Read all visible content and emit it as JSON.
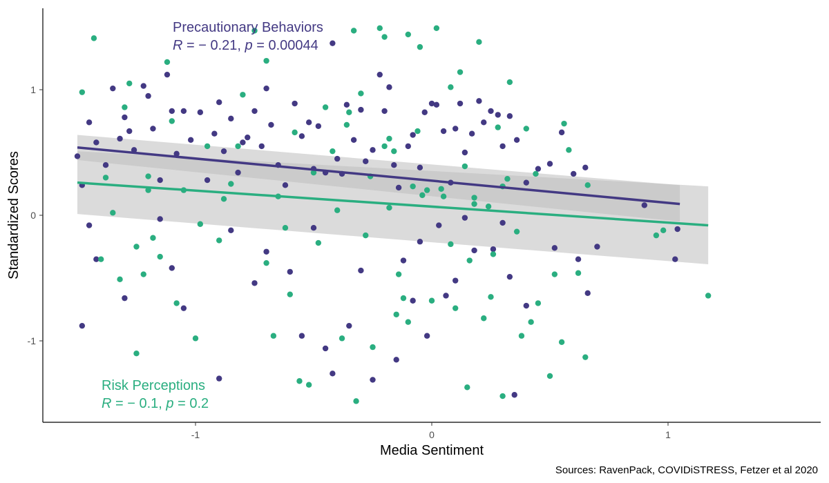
{
  "chart_data": {
    "type": "scatter",
    "xlabel": "Media Sentiment",
    "ylabel": "Standardized Scores",
    "xlim": [
      -1.65,
      1.65
    ],
    "ylim": [
      -1.65,
      1.65
    ],
    "x_ticks": [
      -1,
      0,
      1
    ],
    "y_ticks": [
      -1,
      0,
      1
    ],
    "grid": false,
    "caption": "Sources: RavenPack, COVIDiSTRESS, Fetzer et al 2020",
    "colors": {
      "precautionary": "#433983",
      "risk": "#2aae80",
      "ribbon": "#bdbdbd"
    },
    "annotations": {
      "precautionary": {
        "name": "Precautionary Behaviors",
        "stat_R": "R",
        "stat_mid": " = − 0.21, ",
        "stat_p": "p",
        "stat_end": " = 0.00044"
      },
      "risk": {
        "name": "Risk Perceptions",
        "stat_R": "R",
        "stat_mid": " = − 0.1, ",
        "stat_p": "p",
        "stat_end": " = 0.2"
      }
    },
    "series": [
      {
        "name": "Precautionary Behaviors",
        "regression": {
          "x": [
            -1.5,
            1.05
          ],
          "y": [
            0.54,
            0.09
          ],
          "ci_lower": [
            0.44,
            -0.05
          ],
          "ci_upper": [
            0.64,
            0.24
          ]
        },
        "points": [
          [
            -1.5,
            0.47
          ],
          [
            -1.45,
            0.74
          ],
          [
            -1.42,
            0.58
          ],
          [
            -1.38,
            0.4
          ],
          [
            -1.35,
            1.01
          ],
          [
            -1.32,
            0.61
          ],
          [
            -1.3,
            0.78
          ],
          [
            -1.28,
            0.67
          ],
          [
            -1.26,
            0.52
          ],
          [
            -1.22,
            1.03
          ],
          [
            -1.2,
            0.95
          ],
          [
            -1.18,
            0.69
          ],
          [
            -1.15,
            0.28
          ],
          [
            -1.12,
            1.12
          ],
          [
            -1.1,
            0.83
          ],
          [
            -1.08,
            0.49
          ],
          [
            -1.05,
            0.83
          ],
          [
            -1.02,
            0.6
          ],
          [
            -0.98,
            0.82
          ],
          [
            -0.95,
            0.28
          ],
          [
            -0.92,
            0.65
          ],
          [
            -0.9,
            0.9
          ],
          [
            -0.88,
            0.51
          ],
          [
            -0.85,
            0.77
          ],
          [
            -0.82,
            0.34
          ],
          [
            -0.8,
            0.58
          ],
          [
            -0.78,
            0.62
          ],
          [
            -0.75,
            0.83
          ],
          [
            -0.72,
            0.55
          ],
          [
            -0.7,
            1.01
          ],
          [
            -0.68,
            0.72
          ],
          [
            -0.65,
            0.4
          ],
          [
            -0.62,
            0.24
          ],
          [
            -0.58,
            0.89
          ],
          [
            -0.55,
            0.63
          ],
          [
            -0.52,
            0.74
          ],
          [
            -0.5,
            0.37
          ],
          [
            -0.48,
            0.71
          ],
          [
            -0.45,
            0.34
          ],
          [
            -0.42,
            1.37
          ],
          [
            -0.4,
            0.45
          ],
          [
            -0.38,
            0.33
          ],
          [
            -0.36,
            0.88
          ],
          [
            -0.33,
            0.6
          ],
          [
            -0.3,
            0.84
          ],
          [
            -0.28,
            0.43
          ],
          [
            -0.25,
            0.52
          ],
          [
            -0.22,
            1.12
          ],
          [
            -0.2,
            0.83
          ],
          [
            -0.18,
            1.02
          ],
          [
            -0.16,
            0.4
          ],
          [
            -0.14,
            0.22
          ],
          [
            -0.1,
            0.55
          ],
          [
            -0.08,
            0.64
          ],
          [
            -0.05,
            0.38
          ],
          [
            -0.03,
            0.82
          ],
          [
            0,
            0.89
          ],
          [
            0.02,
            0.88
          ],
          [
            0.05,
            0.67
          ],
          [
            0.08,
            0.26
          ],
          [
            0.1,
            0.69
          ],
          [
            0.12,
            0.89
          ],
          [
            0.14,
            0.5
          ],
          [
            0.17,
            0.65
          ],
          [
            0.2,
            0.91
          ],
          [
            0.22,
            0.74
          ],
          [
            0.25,
            0.83
          ],
          [
            0.28,
            0.8
          ],
          [
            0.3,
            0.55
          ],
          [
            0.33,
            0.79
          ],
          [
            0.36,
            0.6
          ],
          [
            0.4,
            0.26
          ],
          [
            0.45,
            0.37
          ],
          [
            0.5,
            0.41
          ],
          [
            0.55,
            0.66
          ],
          [
            0.6,
            0.33
          ],
          [
            0.65,
            0.38
          ],
          [
            -1.48,
            0.24
          ],
          [
            -1.45,
            -0.08
          ],
          [
            -1.42,
            -0.35
          ],
          [
            -1.3,
            -0.66
          ],
          [
            -1.15,
            -0.03
          ],
          [
            -1.1,
            -0.42
          ],
          [
            -1.05,
            -0.74
          ],
          [
            -0.9,
            -1.3
          ],
          [
            -0.85,
            -0.12
          ],
          [
            -0.75,
            -0.54
          ],
          [
            -0.7,
            -0.29
          ],
          [
            -0.6,
            -0.45
          ],
          [
            -0.55,
            -0.96
          ],
          [
            -0.5,
            -0.1
          ],
          [
            -0.45,
            -1.06
          ],
          [
            -0.42,
            -1.26
          ],
          [
            -0.35,
            -0.88
          ],
          [
            -0.3,
            -0.44
          ],
          [
            -0.25,
            -1.31
          ],
          [
            -0.15,
            -1.15
          ],
          [
            -0.12,
            -0.36
          ],
          [
            -0.08,
            -0.68
          ],
          [
            -0.05,
            -0.21
          ],
          [
            -0.02,
            -0.96
          ],
          [
            0.03,
            -0.08
          ],
          [
            0.06,
            -0.64
          ],
          [
            0.1,
            -0.52
          ],
          [
            0.14,
            -0.02
          ],
          [
            0.18,
            -0.28
          ],
          [
            0.26,
            -0.27
          ],
          [
            0.3,
            -0.06
          ],
          [
            0.35,
            -1.43
          ],
          [
            0.4,
            -0.72
          ],
          [
            0.52,
            -0.26
          ],
          [
            0.62,
            -0.35
          ],
          [
            0.7,
            -0.25
          ],
          [
            0.66,
            -0.62
          ],
          [
            0.9,
            0.08
          ],
          [
            1.03,
            -0.35
          ],
          [
            1.04,
            -0.11
          ],
          [
            -1.48,
            -0.88
          ],
          [
            0.33,
            -0.49
          ]
        ]
      },
      {
        "name": "Risk Perceptions",
        "regression": {
          "x": [
            -1.5,
            1.17
          ],
          "y": [
            0.26,
            -0.08
          ],
          "ci_lower": [
            0.01,
            -0.39
          ],
          "ci_upper": [
            0.51,
            0.23
          ]
        },
        "points": [
          [
            -1.48,
            0.98
          ],
          [
            -1.43,
            1.41
          ],
          [
            -1.4,
            -0.35
          ],
          [
            -1.35,
            0.02
          ],
          [
            -1.32,
            -0.51
          ],
          [
            -1.3,
            0.86
          ],
          [
            -1.28,
            1.05
          ],
          [
            -1.25,
            -1.1
          ],
          [
            -1.22,
            -0.47
          ],
          [
            -1.2,
            0.2
          ],
          [
            -1.18,
            -0.18
          ],
          [
            -1.12,
            1.22
          ],
          [
            -1.1,
            0.75
          ],
          [
            -1.08,
            -0.7
          ],
          [
            -1.05,
            0.2
          ],
          [
            -1.0,
            -0.98
          ],
          [
            -0.95,
            0.55
          ],
          [
            -0.9,
            -0.2
          ],
          [
            -0.85,
            0.25
          ],
          [
            -0.8,
            0.96
          ],
          [
            -0.75,
            1.47
          ],
          [
            -0.7,
            1.23
          ],
          [
            -0.67,
            -0.96
          ],
          [
            -0.62,
            -0.1
          ],
          [
            -0.6,
            -0.63
          ],
          [
            -0.56,
            -1.32
          ],
          [
            -0.52,
            -1.35
          ],
          [
            -0.48,
            -0.22
          ],
          [
            -0.45,
            0.86
          ],
          [
            -0.42,
            0.51
          ],
          [
            -0.38,
            -0.98
          ],
          [
            -0.35,
            0.82
          ],
          [
            -0.33,
            1.47
          ],
          [
            -0.3,
            0.97
          ],
          [
            -0.28,
            -0.16
          ],
          [
            -0.25,
            -1.05
          ],
          [
            -0.22,
            1.49
          ],
          [
            -0.2,
            1.42
          ],
          [
            -0.18,
            0.61
          ],
          [
            -0.15,
            -0.79
          ],
          [
            -0.12,
            -0.66
          ],
          [
            -0.1,
            1.44
          ],
          [
            -0.08,
            0.23
          ],
          [
            -0.05,
            1.34
          ],
          [
            -0.02,
            0.2
          ],
          [
            0.02,
            1.49
          ],
          [
            0.05,
            0.15
          ],
          [
            0.08,
            1.02
          ],
          [
            0.1,
            -0.74
          ],
          [
            0.12,
            1.14
          ],
          [
            0.15,
            -1.37
          ],
          [
            0.18,
            0.09
          ],
          [
            0.2,
            1.38
          ],
          [
            0.22,
            -0.82
          ],
          [
            0.25,
            -0.65
          ],
          [
            0.28,
            0.7
          ],
          [
            0.3,
            -1.44
          ],
          [
            0.33,
            1.06
          ],
          [
            0.36,
            -0.13
          ],
          [
            0.4,
            0.69
          ],
          [
            0.42,
            -0.85
          ],
          [
            0.45,
            -0.7
          ],
          [
            0.5,
            -1.28
          ],
          [
            0.52,
            -0.47
          ],
          [
            0.55,
            -1.01
          ],
          [
            0.58,
            0.52
          ],
          [
            0.62,
            -0.46
          ],
          [
            0.65,
            -1.13
          ],
          [
            0.66,
            0.24
          ],
          [
            0.95,
            -0.16
          ],
          [
            0.98,
            -0.12
          ],
          [
            1.17,
            -0.64
          ],
          [
            -1.38,
            0.3
          ],
          [
            -1.15,
            -0.33
          ],
          [
            -0.98,
            -0.07
          ],
          [
            -0.88,
            0.13
          ],
          [
            -0.65,
            0.15
          ],
          [
            -0.4,
            0.04
          ],
          [
            -0.26,
            0.31
          ],
          [
            -0.2,
            0.55
          ],
          [
            -0.16,
            0.51
          ],
          [
            -0.1,
            -0.85
          ],
          [
            -0.06,
            0.67
          ],
          [
            0.04,
            0.21
          ],
          [
            0.14,
            0.39
          ],
          [
            0.24,
            0.07
          ],
          [
            0.32,
            0.29
          ],
          [
            0.44,
            0.33
          ],
          [
            0.56,
            0.73
          ],
          [
            -1.25,
            -0.25
          ],
          [
            -0.82,
            0.55
          ],
          [
            -0.58,
            0.66
          ],
          [
            -0.36,
            0.72
          ],
          [
            -0.18,
            0.06
          ],
          [
            -0.04,
            0.16
          ],
          [
            0.08,
            -0.23
          ],
          [
            0.18,
            0.14
          ],
          [
            0.26,
            -0.31
          ],
          [
            0.38,
            -0.96
          ],
          [
            -1.2,
            0.31
          ],
          [
            -0.7,
            -0.38
          ],
          [
            -0.5,
            0.34
          ],
          [
            -0.32,
            -1.48
          ],
          [
            -0.14,
            -0.47
          ],
          [
            0.0,
            -0.68
          ],
          [
            0.16,
            -0.36
          ],
          [
            0.3,
            0.23
          ]
        ]
      }
    ]
  }
}
